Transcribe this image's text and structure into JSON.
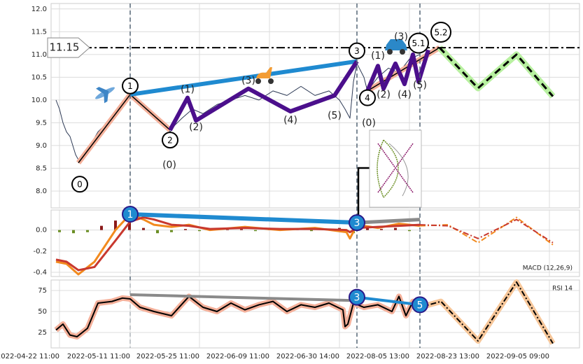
{
  "chart_data": [
    {
      "type": "line",
      "xlim": [
        -12,
        743
      ],
      "ylim": [
        7.63,
        12.12
      ],
      "yticks": [
        {
          "value": 12,
          "label": "12.0"
        },
        11.5,
        {
          "value": 11,
          "label": "11.0"
        },
        10.5,
        {
          "value": 10,
          "label": "10.0"
        },
        9.5,
        {
          "value": 9,
          "label": "9.0"
        },
        8.5,
        {
          "value": 8,
          "label": "8.0"
        }
      ],
      "grid": true,
      "hline": {
        "value": 11.15,
        "label": "11.15"
      },
      "vlines": [
        101,
        425,
        515
      ],
      "series": [
        {
          "color": "#2d3a55",
          "width": 1,
          "x": [
            -5,
            0,
            5,
            10,
            15,
            23,
            30,
            40,
            55,
            75,
            90,
            101,
            108,
            115,
            130,
            150,
            158,
            165,
            175,
            190,
            205,
            225,
            245,
            265,
            285,
            305,
            325,
            345,
            365,
            385,
            400,
            408,
            415,
            420,
            425,
            435,
            440,
            455,
            470,
            485,
            500,
            515
          ],
          "values": [
            10.0,
            9.8,
            9.5,
            9.3,
            9.2,
            8.8,
            8.6,
            8.9,
            9.3,
            9.6,
            9.9,
            10.2,
            10.0,
            9.9,
            9.7,
            9.5,
            9.3,
            9.45,
            9.6,
            9.8,
            9.7,
            9.9,
            10.0,
            10.1,
            10.0,
            10.2,
            10.1,
            10.3,
            10.1,
            10.2,
            10.0,
            9.8,
            9.6,
            10.4,
            10.8,
            10.5,
            10.2,
            10.5,
            10.7,
            10.6,
            10.9,
            11.0
          ]
        },
        {
          "color": "#000000",
          "width": 1.5,
          "glow": "#f4b09a",
          "x": [
            27,
            101,
            158
          ],
          "values": [
            8.62,
            10.12,
            9.34
          ]
        },
        {
          "color": "#000000",
          "width": 1.5,
          "glow": "#f4b09a",
          "x": [
            440,
            543
          ],
          "values": [
            10.2,
            11.15
          ]
        },
        {
          "color": "#1f8ad0",
          "width": 6,
          "x": [
            101,
            425
          ],
          "values": [
            10.12,
            10.85
          ]
        },
        {
          "color": "#4b0f8c",
          "width": 6,
          "x": [
            158,
            183,
            195,
            270,
            330,
            393,
            425
          ],
          "values": [
            9.34,
            10.05,
            9.55,
            10.25,
            9.75,
            10.1,
            10.85
          ]
        },
        {
          "color": "#4b0f8c",
          "width": 6,
          "x": [
            440,
            455,
            463,
            480,
            493,
            505,
            513,
            527
          ],
          "values": [
            10.2,
            10.75,
            10.25,
            10.8,
            10.35,
            11.0,
            10.4,
            11.1
          ]
        },
        {
          "color": "#000000",
          "width": 3,
          "dash": "10 6",
          "glow": "#b8f0a0",
          "x": [
            543,
            598,
            653,
            705
          ],
          "values": [
            11.15,
            10.26,
            11.0,
            10.08
          ]
        }
      ],
      "annotations": [
        {
          "text": "0",
          "x": 29,
          "y": 8.15,
          "shape": "circle"
        },
        {
          "text": "1",
          "x": 101,
          "y": 10.31,
          "shape": "circle"
        },
        {
          "text": "2",
          "x": 158,
          "y": 9.12,
          "shape": "circle"
        },
        {
          "text": "3",
          "x": 425,
          "y": 11.08,
          "shape": "circle"
        },
        {
          "text": "4",
          "x": 440,
          "y": 10.05,
          "shape": "circle"
        },
        {
          "text": "5.1",
          "x": 513,
          "y": 11.25,
          "shape": "circle"
        },
        {
          "text": "5.2",
          "x": 545,
          "y": 11.49,
          "shape": "circle"
        },
        {
          "text": "(1)",
          "x": 183,
          "y": 10.23
        },
        {
          "text": "(2)",
          "x": 195,
          "y": 9.4
        },
        {
          "text": "(3)",
          "x": 270,
          "y": 10.42
        },
        {
          "text": "(4)",
          "x": 330,
          "y": 9.55
        },
        {
          "text": "(5)",
          "x": 393,
          "y": 9.65
        },
        {
          "text": "(0)",
          "x": 157,
          "y": 8.57
        },
        {
          "text": "(0)",
          "x": 442,
          "y": 9.49
        },
        {
          "text": "(1)",
          "x": 455,
          "y": 10.97
        },
        {
          "text": "(2)",
          "x": 463,
          "y": 10.11
        },
        {
          "text": "(3)",
          "x": 488,
          "y": 11.38
        },
        {
          "text": "(4)",
          "x": 493,
          "y": 10.11
        },
        {
          "text": "(5)",
          "x": 515,
          "y": 10.32
        }
      ]
    },
    {
      "type": "line",
      "label": "MACD (12,26,9)",
      "xlim": [
        -12,
        743
      ],
      "ylim": [
        -0.44,
        0.19
      ],
      "yticks": [
        {
          "value": 0,
          "label": "0.0"
        },
        -0.2,
        -0.4
      ],
      "grid": true,
      "bars": {
        "colors": [
          "#8b1a1a",
          "#6a8e23"
        ],
        "x": [
          0,
          20,
          40,
          60,
          80,
          100,
          120,
          140,
          160,
          180,
          200,
          220,
          240,
          260,
          280,
          300,
          320,
          340,
          360,
          380,
          400,
          420,
          440,
          460,
          480,
          500
        ],
        "values": [
          -0.02,
          -0.03,
          -0.02,
          0.04,
          0.09,
          0.07,
          0.02,
          -0.03,
          -0.02,
          0.01,
          -0.01,
          0.01,
          0.005,
          0.01,
          -0.01,
          0.01,
          0.005,
          0.01,
          -0.01,
          0.01,
          0.02,
          -0.03,
          0.02,
          0.01,
          0.02,
          -0.01
        ]
      },
      "series": [
        {
          "color": "#f28a1e",
          "width": 3,
          "x": [
            -5,
            10,
            27,
            50,
            80,
            101,
            120,
            135,
            160,
            185,
            215,
            265,
            315,
            365,
            410,
            415,
            425,
            455,
            485,
            515
          ],
          "values": [
            -0.3,
            -0.32,
            -0.42,
            -0.3,
            0.0,
            0.15,
            0.1,
            0.05,
            0.03,
            0.05,
            0.0,
            0.03,
            0.0,
            0.02,
            -0.02,
            -0.08,
            0.05,
            0.02,
            0.06,
            0.04
          ]
        },
        {
          "color": "#c8382e",
          "width": 3,
          "x": [
            -5,
            10,
            27,
            50,
            80,
            101,
            120,
            135,
            160,
            185,
            215,
            265,
            315,
            365,
            410,
            415,
            425,
            455,
            485,
            515
          ],
          "values": [
            -0.28,
            -0.3,
            -0.38,
            -0.35,
            -0.1,
            0.08,
            0.12,
            0.1,
            0.05,
            0.04,
            0.01,
            0.02,
            0.01,
            0.01,
            0.0,
            -0.02,
            0.02,
            0.03,
            0.04,
            0.05
          ]
        },
        {
          "color": "#f28a1e",
          "width": 2,
          "dash": "8 3 2 3",
          "x": [
            515,
            555,
            598,
            653,
            705
          ],
          "values": [
            0.04,
            0.05,
            -0.12,
            0.12,
            -0.14
          ]
        },
        {
          "color": "#c8382e",
          "width": 2,
          "dash": "8 3 2 3",
          "x": [
            515,
            555,
            598,
            653,
            705
          ],
          "values": [
            0.05,
            0.04,
            -0.08,
            0.1,
            -0.12
          ]
        },
        {
          "color": "#1f8ad0",
          "width": 6,
          "x": [
            101,
            425
          ],
          "values": [
            0.15,
            0.07
          ]
        },
        {
          "color": "#8a8a8a",
          "width": 5,
          "x": [
            425,
            515
          ],
          "values": [
            0.07,
            0.1
          ]
        }
      ],
      "annotations": [
        {
          "text": "1",
          "x": 101,
          "y": 0.15,
          "shape": "circle",
          "fill": "#1f8ad0"
        },
        {
          "text": "3",
          "x": 425,
          "y": 0.07,
          "shape": "circle",
          "fill": "#1f8ad0"
        }
      ]
    },
    {
      "type": "line",
      "label": "RSI 14",
      "xlim": [
        -12,
        743
      ],
      "ylim": [
        6.7,
        87.5
      ],
      "yticks": [
        75,
        50,
        25
      ],
      "xticks": [
        {
          "value": 0,
          "label": "2022-04-22 11:00"
        },
        {
          "value": 101,
          "label": "2022-05-11 11:00"
        },
        {
          "value": 200,
          "label": "2022-05-25 11:00"
        },
        {
          "value": 300,
          "label": "2022-06-09 11:00"
        },
        {
          "value": 400,
          "label": "2022-06-30 14:00"
        },
        {
          "value": 500,
          "label": "2022-08-05 13:00"
        },
        {
          "value": 600,
          "label": "2022-08-23 13:00"
        },
        {
          "value": 700,
          "label": "2022-09-05 09:00"
        }
      ],
      "grid": true,
      "series": [
        {
          "color": "#000000",
          "width": 2,
          "glow": "#f4b09a",
          "x": [
            -5,
            5,
            15,
            25,
            40,
            55,
            75,
            90,
            101,
            115,
            135,
            160,
            185,
            205,
            225,
            245,
            265,
            285,
            305,
            325,
            345,
            365,
            385,
            405,
            408,
            412,
            420,
            435,
            455,
            475,
            485,
            495,
            505,
            515
          ],
          "values": [
            28,
            35,
            22,
            20,
            30,
            60,
            62,
            66,
            65,
            55,
            50,
            45,
            68,
            55,
            50,
            60,
            52,
            58,
            62,
            50,
            58,
            55,
            60,
            52,
            32,
            35,
            60,
            55,
            58,
            50,
            68,
            45,
            62,
            55
          ]
        },
        {
          "color": "#000000",
          "width": 2,
          "dash": "8 3 2 3",
          "glow": "#f7c79a",
          "x": [
            515,
            545,
            598,
            653,
            705
          ],
          "values": [
            55,
            62,
            15,
            85,
            12
          ]
        },
        {
          "color": "#8a8a8a",
          "width": 4,
          "x": [
            101,
            425
          ],
          "values": [
            70,
            63
          ]
        },
        {
          "color": "#1f8ad0",
          "width": 4,
          "x": [
            425,
            515
          ],
          "values": [
            67,
            58
          ]
        }
      ],
      "annotations": [
        {
          "text": "3",
          "x": 425,
          "y": 67,
          "shape": "circle",
          "fill": "#1f8ad0"
        },
        {
          "text": "5",
          "x": 515,
          "y": 58,
          "shape": "circle",
          "fill": "#1f8ad0"
        }
      ]
    }
  ]
}
